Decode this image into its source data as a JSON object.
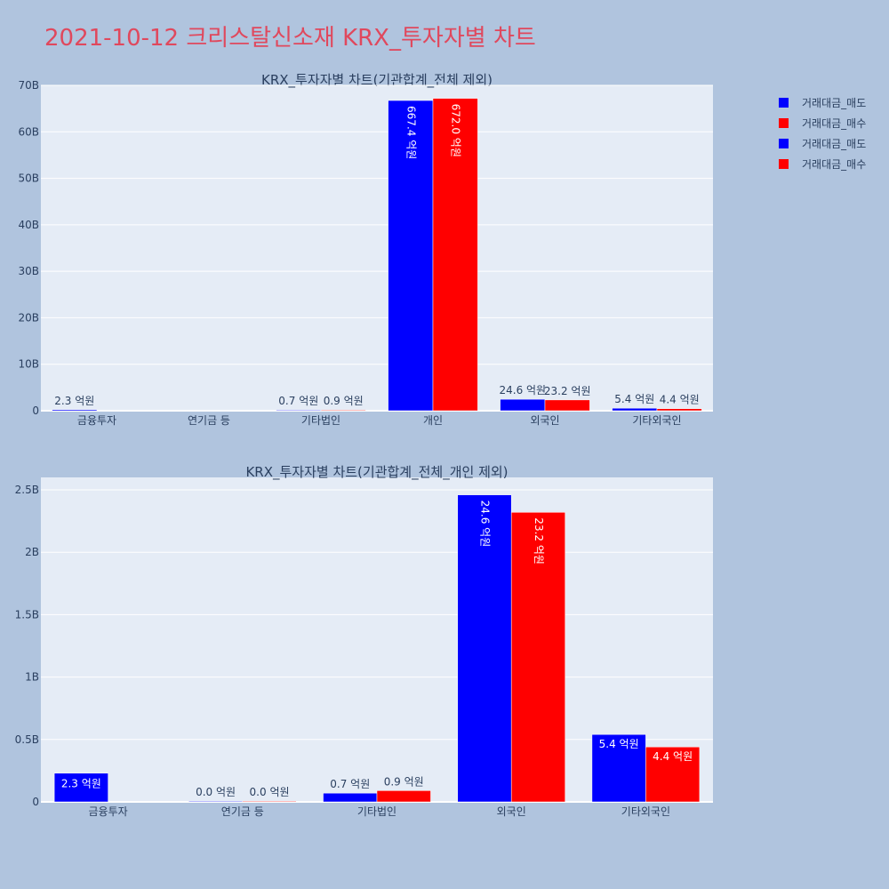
{
  "page_title": "2021-10-12 크리스탈신소재 KRX_투자자별 차트",
  "colors": {
    "sell": "#0000ff",
    "buy": "#ff0000",
    "plot_bg": "#e5ecf6",
    "grid": "#ffffff",
    "page_bg": "#b0c4de",
    "title": "#e0485d"
  },
  "legend": [
    {
      "label": "거래대금_매도",
      "color": "#0000ff"
    },
    {
      "label": "거래대금_매수",
      "color": "#ff0000"
    },
    {
      "label": "거래대금_매도",
      "color": "#0000ff"
    },
    {
      "label": "거래대금_매수",
      "color": "#ff0000"
    }
  ],
  "chart_data": [
    {
      "type": "bar",
      "title": "KRX_투자자별 차트(기관합계_전체 제외)",
      "categories": [
        "금융투자",
        "연기금 등",
        "기타법인",
        "개인",
        "외국인",
        "기타외국인"
      ],
      "ylim": [
        0,
        70000000000
      ],
      "yticks": [
        0,
        10000000000,
        20000000000,
        30000000000,
        40000000000,
        50000000000,
        60000000000,
        70000000000
      ],
      "ytick_labels": [
        "0",
        "10B",
        "20B",
        "30B",
        "40B",
        "50B",
        "60B",
        "70B"
      ],
      "grid": true,
      "legend_position": "top-right",
      "series": [
        {
          "name": "거래대금_매도",
          "color": "#0000ff",
          "values": [
            230000000,
            null,
            70000000,
            66740000000,
            2460000000,
            540000000
          ],
          "labels": [
            "2.3 억원",
            "",
            "0.7 억원",
            "667.4 억원",
            "24.6 억원",
            "5.4 억원"
          ]
        },
        {
          "name": "거래대금_매수",
          "color": "#ff0000",
          "values": [
            null,
            null,
            90000000,
            67200000000,
            2320000000,
            440000000
          ],
          "labels": [
            "",
            "",
            "0.9 억원",
            "672.0 억원",
            "23.2 억원",
            "4.4 억원"
          ]
        }
      ]
    },
    {
      "type": "bar",
      "title": "KRX_투자자별 차트(기관합계_전체_개인 제외)",
      "categories": [
        "금융투자",
        "연기금 등",
        "기타법인",
        "외국인",
        "기타외국인"
      ],
      "ylim": [
        0,
        2600000000
      ],
      "yticks": [
        0,
        500000000,
        1000000000,
        1500000000,
        2000000000,
        2500000000
      ],
      "ytick_labels": [
        "0",
        "0.5B",
        "1B",
        "1.5B",
        "2B",
        "2.5B"
      ],
      "grid": true,
      "series": [
        {
          "name": "거래대금_매도",
          "color": "#0000ff",
          "values": [
            230000000,
            0,
            70000000,
            2460000000,
            540000000
          ],
          "labels": [
            "2.3 억원",
            "0.0 억원",
            "0.7 억원",
            "24.6 억원",
            "5.4 억원"
          ]
        },
        {
          "name": "거래대금_매수",
          "color": "#ff0000",
          "values": [
            null,
            0,
            90000000,
            2320000000,
            440000000
          ],
          "labels": [
            "",
            "0.0 억원",
            "0.9 억원",
            "23.2 억원",
            "4.4 억원"
          ]
        }
      ]
    }
  ]
}
